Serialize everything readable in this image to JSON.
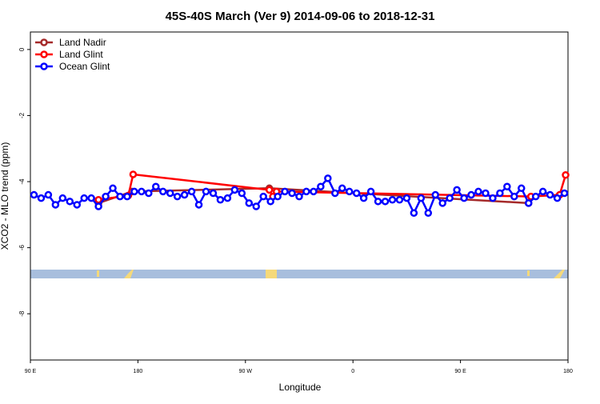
{
  "chart_data": {
    "type": "line",
    "title": "45S-40S March (Ver 9)   2014-09-06 to 2018-12-31",
    "x_label": "Longitude",
    "y_label": "XCO2 - MLO trend (ppm)",
    "xlim": [
      90,
      540
    ],
    "xticks": [
      {
        "value": 90,
        "label": "90 E"
      },
      180,
      {
        "value": 270,
        "label": "90 W"
      },
      {
        "value": 360,
        "label": "0"
      },
      {
        "value": 450,
        "label": "90 E"
      },
      {
        "value": 540,
        "label": "180"
      }
    ],
    "ylim": [
      -9.4,
      0.53
    ],
    "yticks": [
      0,
      -2,
      -4,
      -6,
      -8
    ],
    "legend": "top-left",
    "series": [
      {
        "name": "Land Nadir",
        "color": "#a52a2a",
        "x": [
          147,
          175,
          290,
          507
        ],
        "values": [
          -4.65,
          -4.3,
          -4.2,
          -4.65
        ]
      },
      {
        "name": "Land Glint",
        "color": "#ff0000",
        "x": [
          147,
          172,
          176,
          290,
          293,
          296,
          509,
          533,
          538
        ],
        "values": [
          -4.55,
          -4.42,
          -3.78,
          -4.25,
          -4.45,
          -4.3,
          -4.45,
          -4.4,
          -3.8
        ]
      },
      {
        "name": "Ocean Glint",
        "color": "#0000ff",
        "x": [
          93,
          99,
          105,
          111,
          117,
          123,
          129,
          135,
          141,
          147,
          153,
          159,
          165,
          171,
          177,
          183,
          189,
          195,
          201,
          207,
          213,
          219,
          225,
          231,
          237,
          243,
          249,
          255,
          261,
          267,
          273,
          279,
          285,
          291,
          297,
          303,
          309,
          315,
          321,
          327,
          333,
          339,
          345,
          351,
          357,
          363,
          369,
          375,
          381,
          387,
          393,
          399,
          405,
          411,
          417,
          423,
          429,
          435,
          441,
          447,
          453,
          459,
          465,
          471,
          477,
          483,
          489,
          495,
          501,
          507,
          513,
          519,
          525,
          531,
          537
        ],
        "values": [
          -4.4,
          -4.5,
          -4.4,
          -4.7,
          -4.5,
          -4.6,
          -4.7,
          -4.5,
          -4.5,
          -4.75,
          -4.45,
          -4.2,
          -4.45,
          -4.45,
          -4.3,
          -4.3,
          -4.35,
          -4.15,
          -4.3,
          -4.35,
          -4.45,
          -4.4,
          -4.3,
          -4.7,
          -4.3,
          -4.35,
          -4.55,
          -4.5,
          -4.25,
          -4.35,
          -4.65,
          -4.75,
          -4.45,
          -4.6,
          -4.45,
          -4.3,
          -4.35,
          -4.45,
          -4.3,
          -4.3,
          -4.15,
          -3.9,
          -4.35,
          -4.2,
          -4.3,
          -4.35,
          -4.5,
          -4.3,
          -4.6,
          -4.6,
          -4.55,
          -4.55,
          -4.5,
          -4.95,
          -4.5,
          -4.95,
          -4.4,
          -4.65,
          -4.5,
          -4.25,
          -4.5,
          -4.4,
          -4.3,
          -4.35,
          -4.5,
          -4.35,
          -4.15,
          -4.45,
          -4.2,
          -4.65,
          -4.45,
          -4.3,
          -4.4,
          -4.5,
          -4.35
        ]
      }
    ]
  }
}
